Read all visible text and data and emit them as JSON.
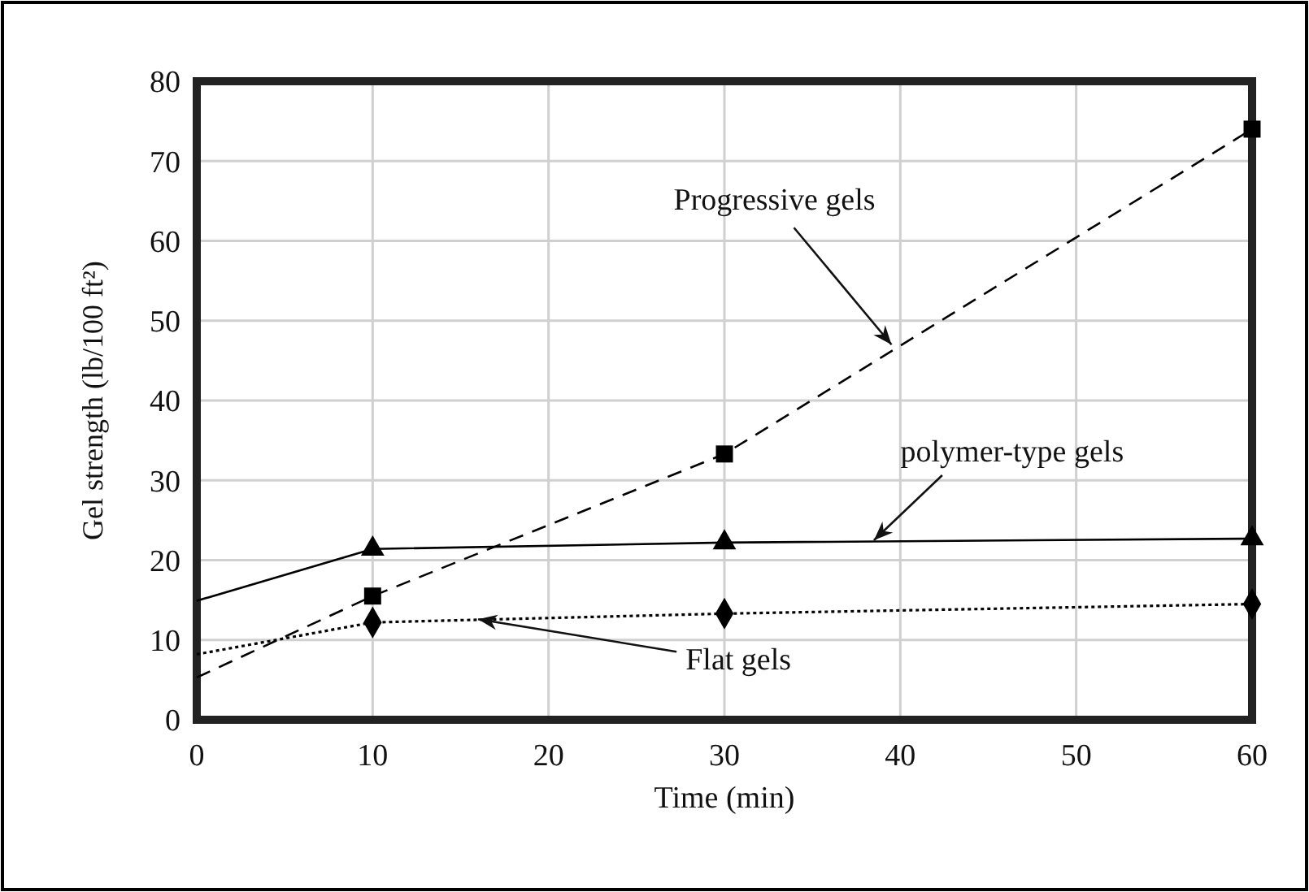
{
  "chart_data": {
    "type": "line",
    "xlabel": "Time (min)",
    "ylabel": "Gel strength (lb/100 ft²)",
    "xlim": [
      0,
      60
    ],
    "xticks": [
      0,
      10,
      20,
      30,
      40,
      50,
      60
    ],
    "ylim": [
      0,
      80
    ],
    "yticks": [
      0,
      10,
      20,
      30,
      40,
      50,
      60,
      70,
      80
    ],
    "grid": true,
    "series": [
      {
        "color": "#000000",
        "line_style": "dashed",
        "marker": "none",
        "x": [
          0,
          10,
          30,
          60
        ],
        "values": [
          5.3,
          15.5,
          33.3,
          74
        ]
      },
      {
        "color": "#000000",
        "line_style": "solid",
        "marker": "none",
        "x": [
          0,
          10,
          30,
          60
        ],
        "values": [
          14.9,
          21.4,
          22.2,
          22.7
        ]
      },
      {
        "color": "#000000",
        "line_style": "dotted",
        "marker": "none",
        "x": [
          0,
          10,
          30,
          60
        ],
        "values": [
          8.2,
          12.2,
          13.3,
          14.5
        ]
      },
      {
        "type": "scatter",
        "color": "#000000",
        "marker": "square",
        "x": [
          10,
          30,
          60
        ],
        "values": [
          15.5,
          33.3,
          74
        ]
      },
      {
        "type": "scatter",
        "color": "#000000",
        "marker": "triangle",
        "x": [
          10,
          30,
          60
        ],
        "values": [
          21.4,
          22.2,
          22.7
        ]
      },
      {
        "type": "scatter",
        "color": "#000000",
        "marker": "diamond",
        "x": [
          10,
          30,
          60
        ],
        "values": [
          12.2,
          13.3,
          14.5
        ]
      }
    ],
    "annotations": [
      {
        "text": "Progressive gels",
        "x": 39.5,
        "y": 47
      },
      {
        "text": "polymer-type gels",
        "x": 38.5,
        "y": 22.5
      },
      {
        "text": "Flat gels",
        "x": 16,
        "y": 12.6
      }
    ]
  }
}
